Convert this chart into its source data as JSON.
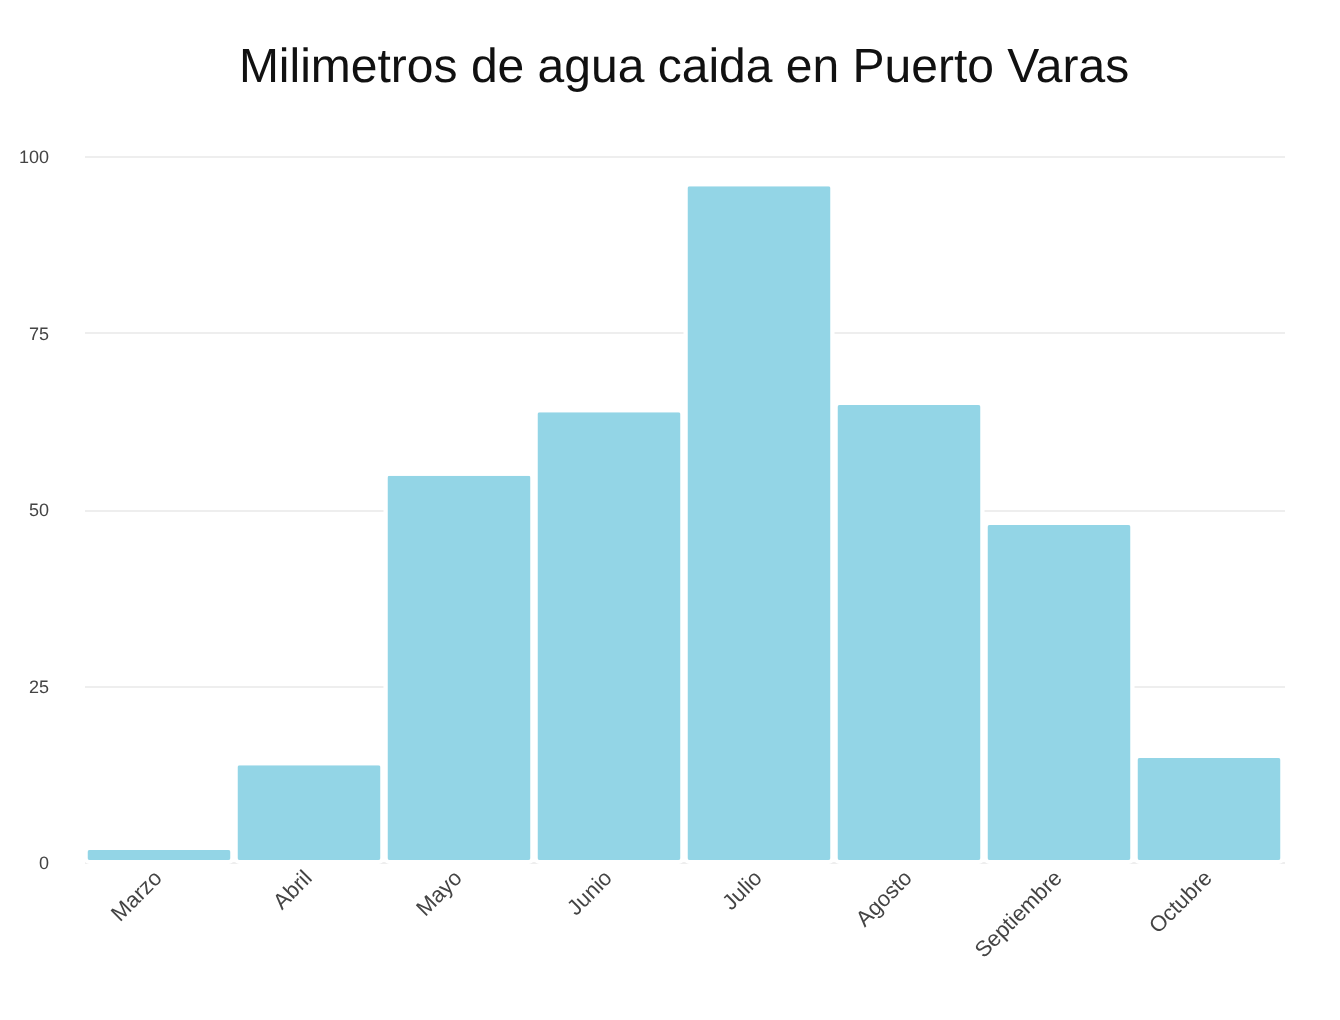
{
  "chart_data": {
    "type": "bar",
    "title": "Milimetros de agua caida en Puerto Varas",
    "categories": [
      "Marzo",
      "Abril",
      "Mayo",
      "Junio",
      "Julio",
      "Agosto",
      "Septiembre",
      "Octubre"
    ],
    "values": [
      2,
      14,
      55,
      64,
      96,
      65,
      48,
      15
    ],
    "color": "#93d5e6",
    "ylim": [
      0,
      100
    ],
    "yticks": [
      0,
      25,
      50,
      75,
      100
    ],
    "grid": "y"
  }
}
